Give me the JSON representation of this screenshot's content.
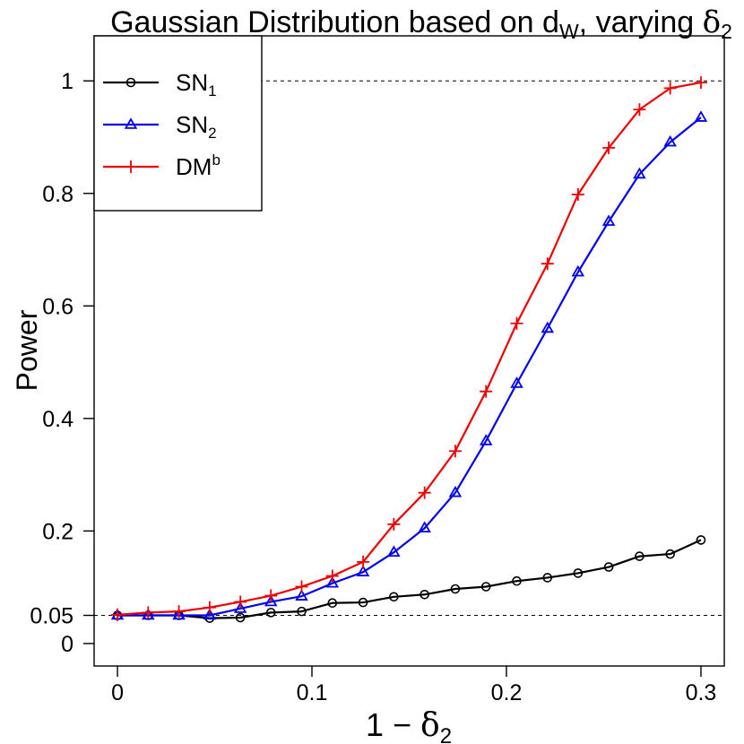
{
  "chart_data": {
    "type": "line",
    "title": {
      "prefix": "Gaussian Distribution based on d",
      "sub": "W",
      "suffix": ", varying ",
      "symbol": "δ",
      "symbol_sub": "2"
    },
    "xlabel": {
      "prefix": "1 − ",
      "symbol": "δ",
      "sub": "2"
    },
    "ylabel": "Power",
    "xlim": [
      -0.012,
      0.312
    ],
    "ylim": [
      -0.04,
      1.08
    ],
    "xticks": [
      0,
      0.1,
      0.2,
      0.3
    ],
    "xtick_labels": [
      "0",
      "0.1",
      "0.2",
      "0.3"
    ],
    "yticks": [
      0,
      0.05,
      0.2,
      0.4,
      0.6,
      0.8,
      1
    ],
    "ytick_labels": [
      "0",
      "0.05",
      "0.2",
      "0.4",
      "0.6",
      "0.8",
      "1"
    ],
    "reference_lines": [
      0.05,
      1
    ],
    "x": [
      0,
      0.0158,
      0.0316,
      0.0474,
      0.0632,
      0.0789,
      0.0947,
      0.1105,
      0.1263,
      0.1421,
      0.1579,
      0.1737,
      0.1895,
      0.2053,
      0.2211,
      0.2368,
      0.2526,
      0.2684,
      0.2842,
      0.3
    ],
    "series": [
      {
        "name": "SN",
        "name_sub": "1",
        "name_sup": "",
        "color": "#000000",
        "marker": "circle",
        "values": [
          0.05,
          0.05,
          0.05,
          0.045,
          0.046,
          0.055,
          0.057,
          0.072,
          0.073,
          0.083,
          0.087,
          0.097,
          0.101,
          0.111,
          0.117,
          0.125,
          0.136,
          0.155,
          0.159,
          0.184
        ]
      },
      {
        "name": "SN",
        "name_sub": "2",
        "name_sup": "",
        "color": "#0000ee",
        "marker": "triangle",
        "values": [
          0.05,
          0.05,
          0.05,
          0.05,
          0.062,
          0.074,
          0.084,
          0.107,
          0.127,
          0.162,
          0.205,
          0.268,
          0.36,
          0.462,
          0.56,
          0.66,
          0.75,
          0.834,
          0.891,
          0.935
        ]
      },
      {
        "name": "DM",
        "name_sub": "",
        "name_sup": "b",
        "color": "#ee0000",
        "marker": "plus",
        "values": [
          0.051,
          0.055,
          0.057,
          0.064,
          0.074,
          0.085,
          0.101,
          0.12,
          0.145,
          0.212,
          0.268,
          0.342,
          0.448,
          0.569,
          0.675,
          0.798,
          0.881,
          0.949,
          0.987,
          0.997
        ]
      }
    ],
    "legend_position": "top-left"
  }
}
